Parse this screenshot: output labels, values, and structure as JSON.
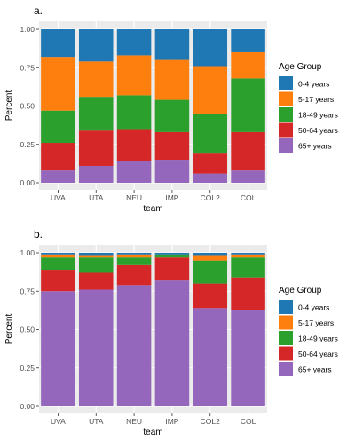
{
  "chart_data": [
    {
      "panel_label": "a.",
      "type": "bar",
      "stacked": true,
      "xlabel": "team",
      "ylabel": "Percent",
      "ylim": [
        0,
        1
      ],
      "y_ticks": [
        "0.00",
        "0.25",
        "0.50",
        "0.75",
        "1.00"
      ],
      "grid": true,
      "categories": [
        "UVA",
        "UTA",
        "NEU",
        "IMP",
        "COL2",
        "COL"
      ],
      "legend": {
        "title": "Age Group",
        "position": "right"
      },
      "series": [
        {
          "name": "65+ years",
          "color": "#9467BD",
          "values": [
            0.08,
            0.11,
            0.14,
            0.15,
            0.06,
            0.08
          ]
        },
        {
          "name": "50-64 years",
          "color": "#D62728",
          "values": [
            0.18,
            0.23,
            0.21,
            0.18,
            0.13,
            0.25
          ]
        },
        {
          "name": "18-49 years",
          "color": "#2CA02C",
          "values": [
            0.21,
            0.22,
            0.22,
            0.21,
            0.26,
            0.35
          ]
        },
        {
          "name": "5-17 years",
          "color": "#FF7F0E",
          "values": [
            0.35,
            0.23,
            0.26,
            0.26,
            0.31,
            0.17
          ]
        },
        {
          "name": "0-4 years",
          "color": "#1F77B4",
          "values": [
            0.18,
            0.21,
            0.17,
            0.2,
            0.24,
            0.15
          ]
        }
      ]
    },
    {
      "panel_label": "b.",
      "type": "bar",
      "stacked": true,
      "xlabel": "team",
      "ylabel": "Percent",
      "ylim": [
        0,
        1
      ],
      "y_ticks": [
        "0.00",
        "0.25",
        "0.50",
        "0.75",
        "1.00"
      ],
      "grid": true,
      "categories": [
        "UVA",
        "UTA",
        "NEU",
        "IMP",
        "COL2",
        "COL"
      ],
      "legend": {
        "title": "Age Group",
        "position": "right"
      },
      "series": [
        {
          "name": "65+ years",
          "color": "#9467BD",
          "values": [
            0.75,
            0.76,
            0.79,
            0.82,
            0.64,
            0.63
          ]
        },
        {
          "name": "50-64 years",
          "color": "#D62728",
          "values": [
            0.14,
            0.11,
            0.13,
            0.15,
            0.16,
            0.21
          ]
        },
        {
          "name": "18-49 years",
          "color": "#2CA02C",
          "values": [
            0.08,
            0.1,
            0.05,
            0.02,
            0.15,
            0.13
          ]
        },
        {
          "name": "5-17 years",
          "color": "#FF7F0E",
          "values": [
            0.02,
            0.01,
            0.02,
            0.0,
            0.03,
            0.02
          ]
        },
        {
          "name": "0-4 years",
          "color": "#1F77B4",
          "values": [
            0.01,
            0.02,
            0.01,
            0.01,
            0.02,
            0.01
          ]
        }
      ]
    }
  ]
}
